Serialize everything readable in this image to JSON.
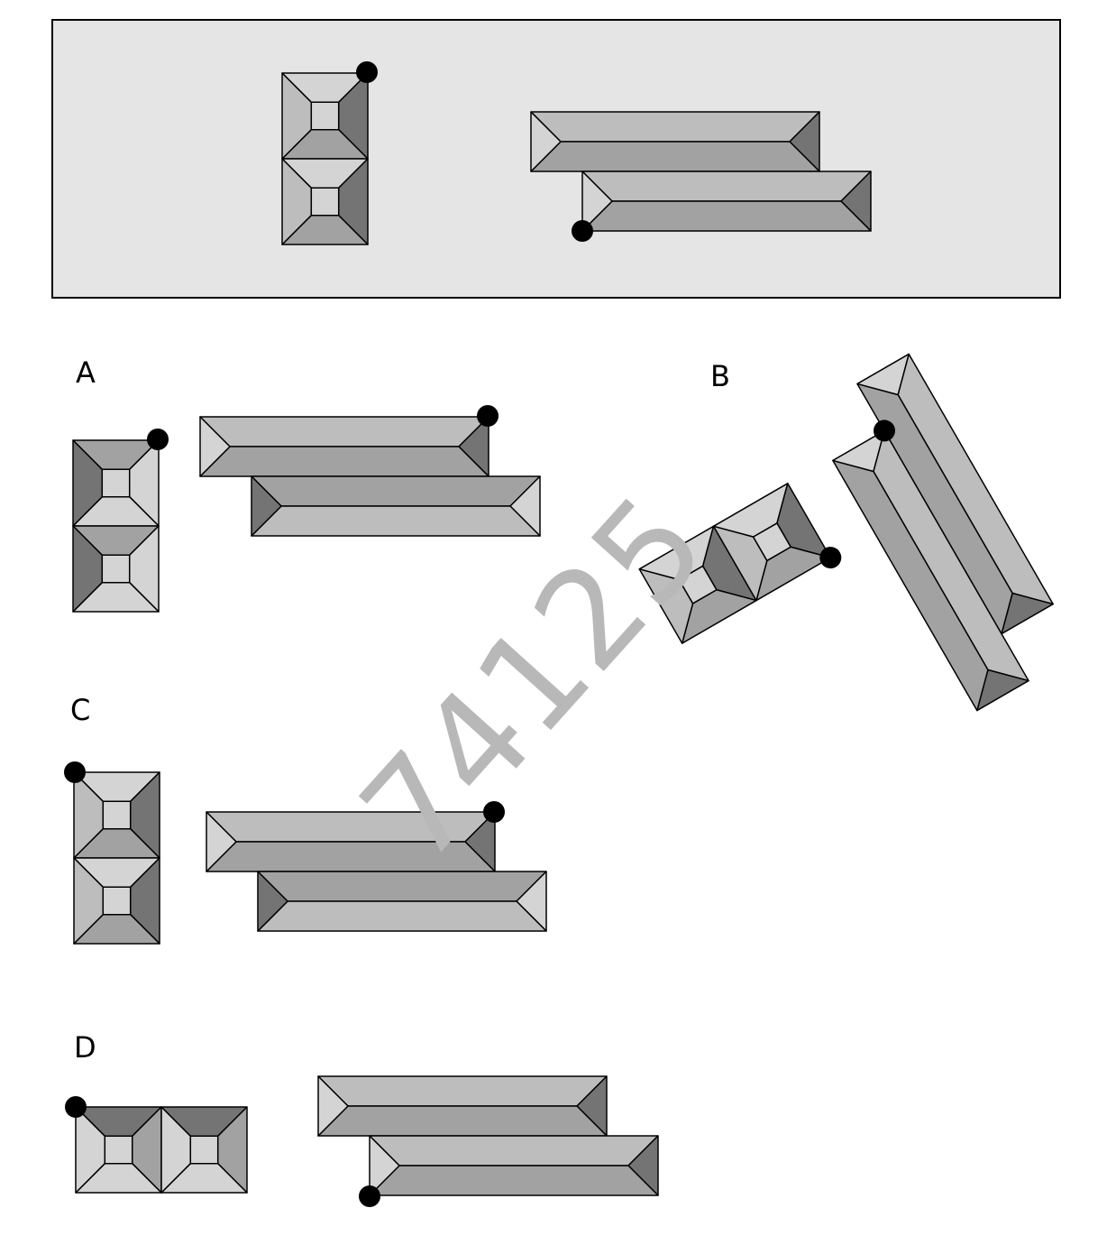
{
  "options": [
    {
      "label": "A"
    },
    {
      "label": "B"
    },
    {
      "label": "C"
    },
    {
      "label": "D"
    }
  ],
  "watermark": "74125",
  "colors": {
    "panel_bg": "#e5e5e5",
    "shade_light": "#d4d4d4",
    "shade_mid_light": "#bdbdbd",
    "shade_mid": "#a2a2a2",
    "shade_dark": "#747474",
    "stroke": "#000000",
    "marker": "#000000"
  }
}
